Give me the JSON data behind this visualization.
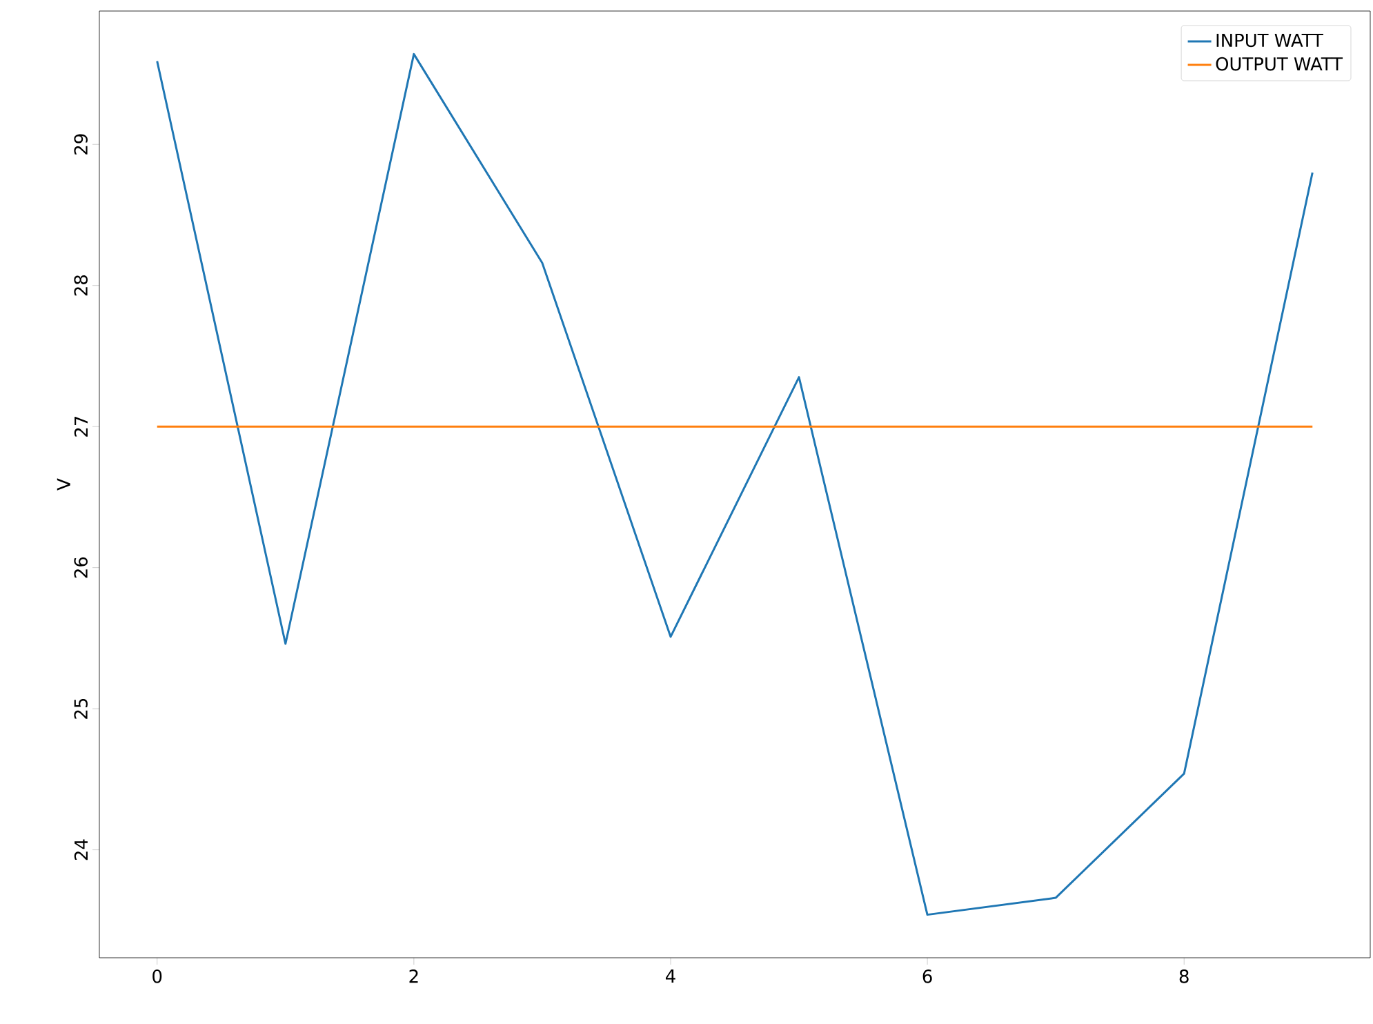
{
  "chart_data": {
    "type": "line",
    "ylabel": "V",
    "x": [
      0,
      1,
      2,
      3,
      4,
      5,
      6,
      7,
      8,
      9
    ],
    "series": [
      {
        "name": "INPUT WATT",
        "color": "#1f77b4",
        "values": [
          29.59,
          25.46,
          29.64,
          28.16,
          25.51,
          27.35,
          23.54,
          23.66,
          24.54,
          28.8
        ]
      },
      {
        "name": "OUTPUT WATT",
        "color": "#ff7f0e",
        "values": [
          27.0,
          27.0,
          27.0,
          27.0,
          27.0,
          27.0,
          27.0,
          27.0,
          27.0,
          27.0
        ]
      }
    ],
    "xlim": [
      -0.45,
      9.45
    ],
    "ylim": [
      23.235,
      29.945
    ],
    "xticks": [
      0,
      2,
      4,
      6,
      8
    ],
    "yticks": [
      24,
      25,
      26,
      27,
      28,
      29
    ],
    "legend": "top right",
    "grid": false,
    "marker": "none",
    "line_style": "solid"
  }
}
